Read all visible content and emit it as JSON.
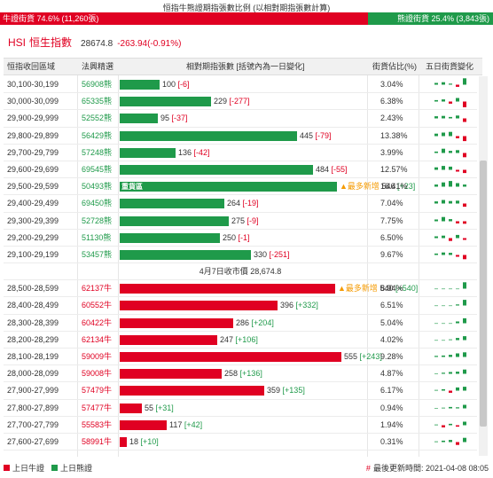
{
  "ratio": {
    "title": "恒指牛熊證期指張數比例 (以相對期指張數計算)",
    "bull_label": "牛證街貨 74.6% (11,260張)",
    "bear_label": "熊證街貨 25.4% (3,843張)",
    "bull_fraction": 0.746,
    "colors": {
      "bull": "#e00022",
      "bear": "#1f9a4a"
    }
  },
  "index": {
    "code": "HSI",
    "name": "恒生指數",
    "price": "28674.8",
    "change": "-263.94(-0.91%)"
  },
  "table": {
    "headers": {
      "range": "恒指收回區域",
      "ce": "法興精選",
      "change": "相對期指張數 [括號內為一日變化]",
      "pct": "街貨佔比(%)",
      "five_day": "五日街貨變化"
    },
    "bear_rows": [
      {
        "range": "30,100-30,199",
        "ce": "56908熊",
        "value": "100",
        "chg": "[-6]",
        "chg_sign": "neg",
        "pct": "3.04%",
        "bar": 0.18,
        "five": [
          0.25,
          0.35,
          0.15,
          -0.3,
          0.9
        ]
      },
      {
        "range": "30,000-30,099",
        "ce": "65335熊",
        "value": "229",
        "chg": "[-277]",
        "chg_sign": "neg",
        "pct": "6.38%",
        "bar": 0.41,
        "five": [
          0.2,
          0.3,
          -0.3,
          0.5,
          -0.8
        ]
      },
      {
        "range": "29,900-29,999",
        "ce": "52552熊",
        "value": "95",
        "chg": "[-37]",
        "chg_sign": "neg",
        "pct": "2.43%",
        "bar": 0.17,
        "five": [
          0.3,
          0.35,
          0.2,
          0.4,
          -0.5
        ]
      },
      {
        "range": "29,800-29,899",
        "ce": "56429熊",
        "value": "445",
        "chg": "[-79]",
        "chg_sign": "neg",
        "pct": "13.38%",
        "bar": 0.8,
        "five": [
          0.35,
          0.5,
          0.6,
          -0.3,
          -0.7
        ]
      },
      {
        "range": "29,700-29,799",
        "ce": "57248熊",
        "value": "136",
        "chg": "[-42]",
        "chg_sign": "neg",
        "pct": "3.99%",
        "bar": 0.25,
        "five": [
          0.2,
          0.6,
          0.3,
          0.4,
          -0.6
        ]
      },
      {
        "range": "29,600-29,699",
        "ce": "69545熊",
        "value": "484",
        "chg": "[-55]",
        "chg_sign": "neg",
        "pct": "12.57%",
        "bar": 0.87,
        "five": [
          0.35,
          0.55,
          0.45,
          -0.25,
          -0.45
        ]
      },
      {
        "range": "29,500-29,599",
        "ce": "50493熊",
        "value": "546",
        "chg": "[+23]",
        "chg_sign": "pos",
        "pct": "16.41%",
        "bar": 0.98,
        "heavy": "重貨區",
        "newest": "▲最多新增",
        "five": [
          0.3,
          0.6,
          0.8,
          0.5,
          0.3
        ]
      },
      {
        "range": "29,400-29,499",
        "ce": "69450熊",
        "value": "264",
        "chg": "[-19]",
        "chg_sign": "neg",
        "pct": "7.04%",
        "bar": 0.47,
        "five": [
          0.3,
          0.5,
          0.35,
          0.4,
          -0.45
        ]
      },
      {
        "range": "29,300-29,399",
        "ce": "52728熊",
        "value": "275",
        "chg": "[-9]",
        "chg_sign": "neg",
        "pct": "7.75%",
        "bar": 0.49,
        "five": [
          0.25,
          0.6,
          0.3,
          -0.3,
          -0.35
        ]
      },
      {
        "range": "29,200-29,299",
        "ce": "51130熊",
        "value": "250",
        "chg": "[-1]",
        "chg_sign": "neg",
        "pct": "6.50%",
        "bar": 0.45,
        "five": [
          0.25,
          0.35,
          -0.4,
          0.45,
          -0.25
        ]
      },
      {
        "range": "29,100-29,199",
        "ce": "53457熊",
        "value": "330",
        "chg": "[-251]",
        "chg_sign": "neg",
        "pct": "9.67%",
        "bar": 0.59,
        "five": [
          0.2,
          0.35,
          0.3,
          -0.25,
          -0.6
        ]
      }
    ],
    "close_text": "4月7日收市價 28,674.8",
    "bull_rows": [
      {
        "range": "28,500-28,599",
        "ce": "62137牛",
        "value": "540",
        "chg": "[+540]",
        "chg_sign": "pos",
        "pct": "8.94%",
        "bar": 0.97,
        "newest": "▲最多新增",
        "five": [
          0,
          0,
          0,
          0,
          0.9
        ]
      },
      {
        "range": "28,400-28,499",
        "ce": "60552牛",
        "value": "396",
        "chg": "[+332]",
        "chg_sign": "pos",
        "pct": "6.51%",
        "bar": 0.71,
        "five": [
          0,
          0,
          0,
          0.15,
          0.8
        ]
      },
      {
        "range": "28,300-28,399",
        "ce": "60422牛",
        "value": "286",
        "chg": "[+204]",
        "chg_sign": "pos",
        "pct": "5.04%",
        "bar": 0.51,
        "five": [
          0,
          0,
          0,
          0.25,
          0.7
        ]
      },
      {
        "range": "28,200-28,299",
        "ce": "62134牛",
        "value": "247",
        "chg": "[+106]",
        "chg_sign": "pos",
        "pct": "4.02%",
        "bar": 0.44,
        "five": [
          0,
          0,
          0.1,
          0.3,
          0.55
        ]
      },
      {
        "range": "28,100-28,199",
        "ce": "59009牛",
        "value": "555",
        "chg": "[+243]",
        "chg_sign": "pos",
        "pct": "9.28%",
        "bar": 1.0,
        "five": [
          0.15,
          0.2,
          0.3,
          0.5,
          0.65
        ]
      },
      {
        "range": "28,000-28,099",
        "ce": "59008牛",
        "value": "258",
        "chg": "[+136]",
        "chg_sign": "pos",
        "pct": "4.87%",
        "bar": 0.46,
        "five": [
          0.05,
          0.15,
          0.25,
          0.3,
          0.6
        ]
      },
      {
        "range": "27,900-27,999",
        "ce": "57479牛",
        "value": "359",
        "chg": "[+135]",
        "chg_sign": "pos",
        "pct": "6.17%",
        "bar": 0.65,
        "five": [
          0.1,
          0.2,
          -0.3,
          0.45,
          0.55
        ]
      },
      {
        "range": "27,800-27,899",
        "ce": "57477牛",
        "value": "55",
        "chg": "[+31]",
        "chg_sign": "pos",
        "pct": "0.94%",
        "bar": 0.1,
        "five": [
          0.05,
          0.1,
          0.2,
          0.15,
          0.5
        ]
      },
      {
        "range": "27,700-27,799",
        "ce": "55583牛",
        "value": "117",
        "chg": "[+42]",
        "chg_sign": "pos",
        "pct": "1.94%",
        "bar": 0.21,
        "five": [
          0.1,
          -0.3,
          0.2,
          -0.2,
          0.5
        ]
      },
      {
        "range": "27,600-27,699",
        "ce": "58991牛",
        "value": "18",
        "chg": "[+10]",
        "chg_sign": "pos",
        "pct": "0.31%",
        "bar": 0.03,
        "five": [
          0.1,
          0.2,
          0.3,
          -0.4,
          0.6
        ]
      }
    ]
  },
  "legend": {
    "bull": "上日牛證",
    "bear": "上日熊證"
  },
  "updated": {
    "hash": "#",
    "text": "最後更新時間: 2021-04-08 08:05"
  }
}
